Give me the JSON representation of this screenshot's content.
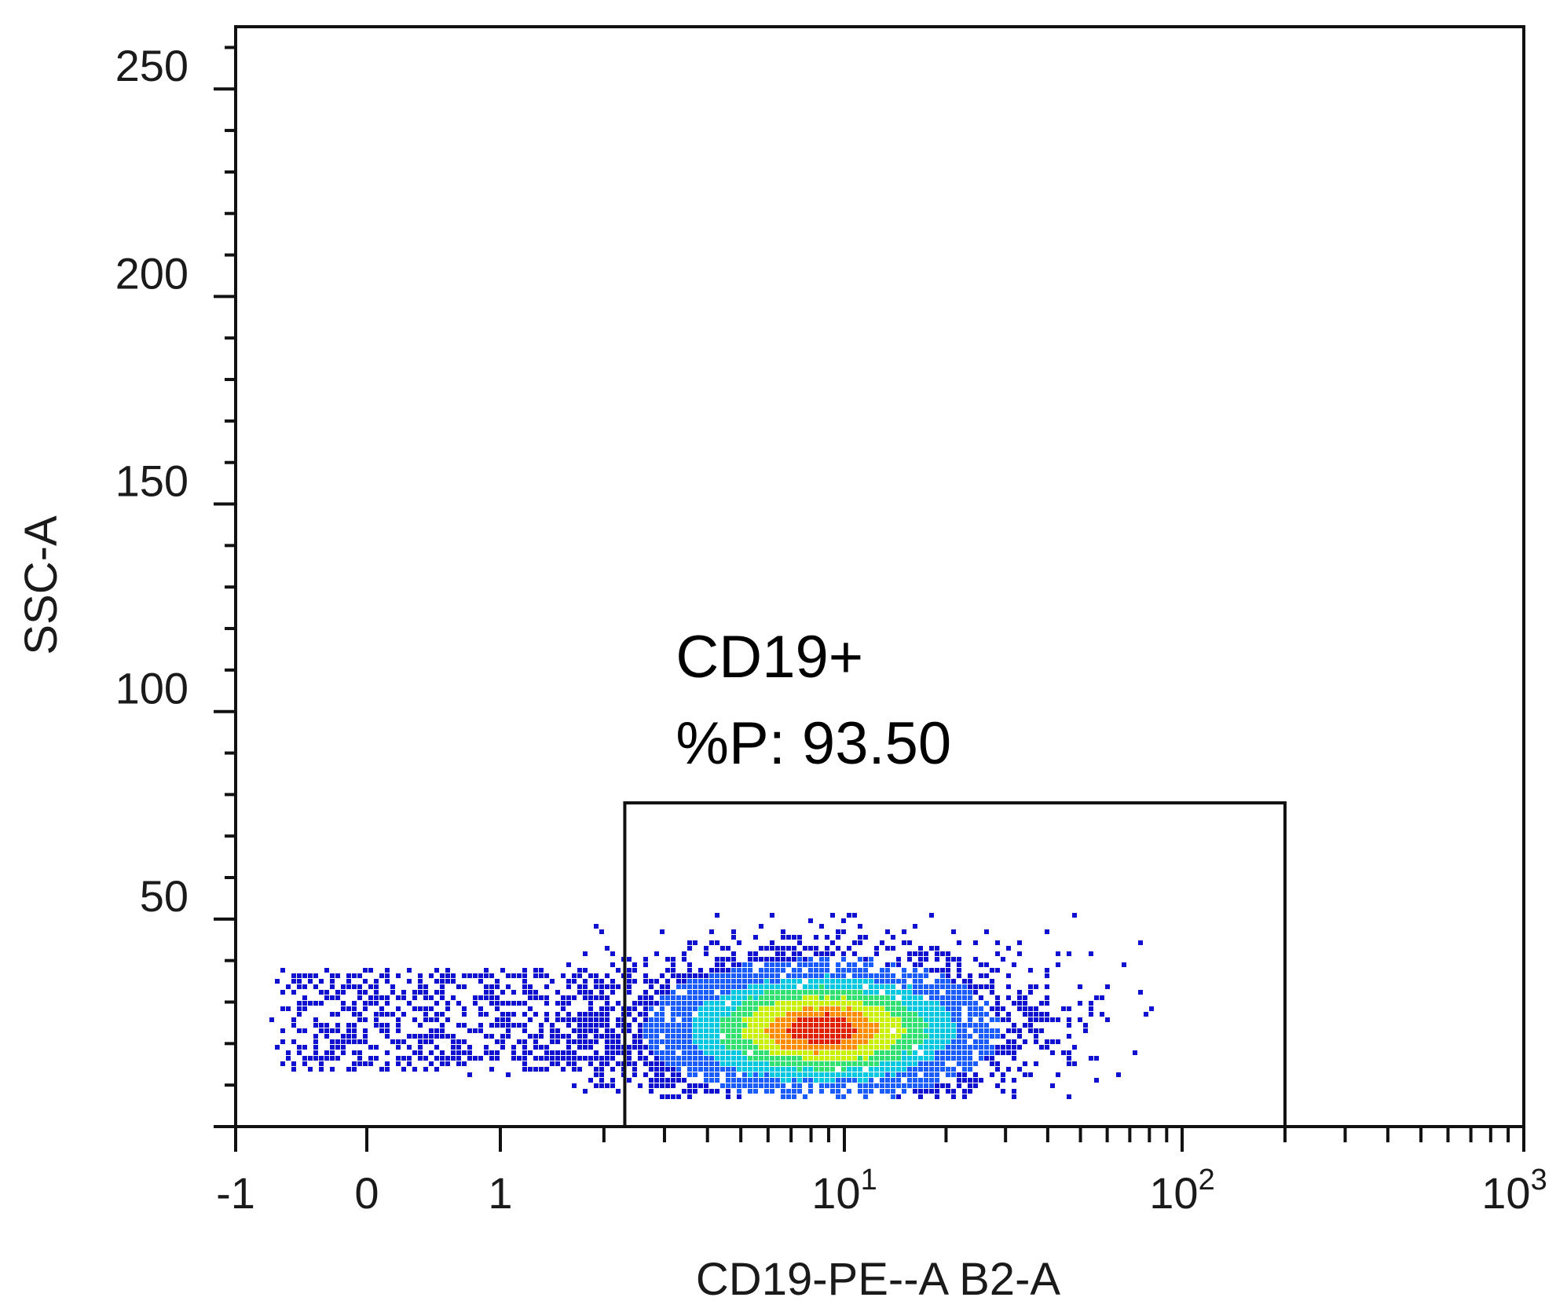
{
  "chart_data": {
    "type": "scatter",
    "subtype": "flow-cytometry density dot plot",
    "title": "",
    "xlabel": "CD19-PE--A B2-A",
    "ylabel": "SSC-A",
    "x_scale": "biexponential (linear -1..1, log above)",
    "xlim": [
      -1,
      1000
    ],
    "ylim": [
      0,
      265
    ],
    "x_ticks": [
      {
        "value": -1,
        "label": "-1",
        "sup": ""
      },
      {
        "value": 0,
        "label": "0",
        "sup": ""
      },
      {
        "value": 1,
        "label": "1",
        "sup": ""
      },
      {
        "value": 10,
        "label": "10",
        "sup": "1"
      },
      {
        "value": 100,
        "label": "10",
        "sup": "2"
      },
      {
        "value": 1000,
        "label": "10",
        "sup": "3"
      }
    ],
    "y_ticks": [
      {
        "value": 50,
        "label": "50"
      },
      {
        "value": 100,
        "label": "100"
      },
      {
        "value": 150,
        "label": "150"
      },
      {
        "value": 200,
        "label": "200"
      },
      {
        "value": 250,
        "label": "250"
      }
    ],
    "gate": {
      "name": "CD19+",
      "stat_label": "%P: 93.50",
      "percent": 93.5,
      "x_range": [
        2.3,
        200
      ],
      "y_range": [
        0,
        78
      ]
    },
    "population": {
      "center_x": 8.5,
      "center_y": 24,
      "x_spread_decades": 0.28,
      "y_spread": 9,
      "density_colors": [
        "#1010d0",
        "#1a5cff",
        "#00c8e0",
        "#30e070",
        "#c8f000",
        "#ff8c00",
        "#e02000"
      ]
    },
    "grid": false,
    "legend": "none"
  }
}
